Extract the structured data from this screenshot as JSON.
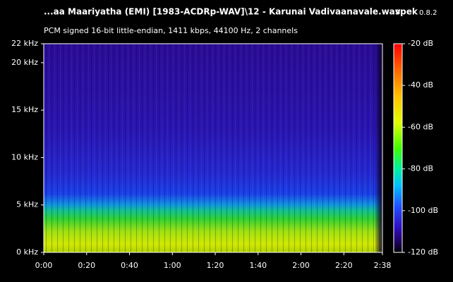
{
  "chart_data": {
    "type": "spectrogram",
    "title": "...aa Maariyatha (EMI) [1983-ACDRp-WAV]\\12 - Karunai Vadivaanavale.wav",
    "app": "spek",
    "version": "0.8.2",
    "subtitle": "PCM signed 16-bit little-endian, 1411 kbps, 44100 Hz, 2 channels",
    "xlim": [
      0,
      158
    ],
    "xticks": [
      {
        "value": 0,
        "label": "0:00"
      },
      {
        "value": 20,
        "label": "0:20"
      },
      {
        "value": 40,
        "label": "0:40"
      },
      {
        "value": 60,
        "label": "1:00"
      },
      {
        "value": 80,
        "label": "1:20"
      },
      {
        "value": 100,
        "label": "1:40"
      },
      {
        "value": 120,
        "label": "2:00"
      },
      {
        "value": 140,
        "label": "2:20"
      },
      {
        "value": 158,
        "label": "2:38"
      }
    ],
    "ylim": [
      0,
      22
    ],
    "yticks": [
      {
        "value": 0,
        "label": "0 kHz"
      },
      {
        "value": 5,
        "label": "5 kHz"
      },
      {
        "value": 10,
        "label": "10 kHz"
      },
      {
        "value": 15,
        "label": "15 kHz"
      },
      {
        "value": 20,
        "label": "20 kHz"
      },
      {
        "value": 22,
        "label": "22 kHz"
      }
    ],
    "zlim": [
      -120,
      -20
    ],
    "zticks": [
      {
        "value": -20,
        "label": "-20 dB"
      },
      {
        "value": -40,
        "label": "-40 dB"
      },
      {
        "value": -60,
        "label": "-60 dB"
      },
      {
        "value": -80,
        "label": "-80 dB"
      },
      {
        "value": -100,
        "label": "-100 dB"
      },
      {
        "value": -120,
        "label": "-120 dB"
      }
    ]
  }
}
